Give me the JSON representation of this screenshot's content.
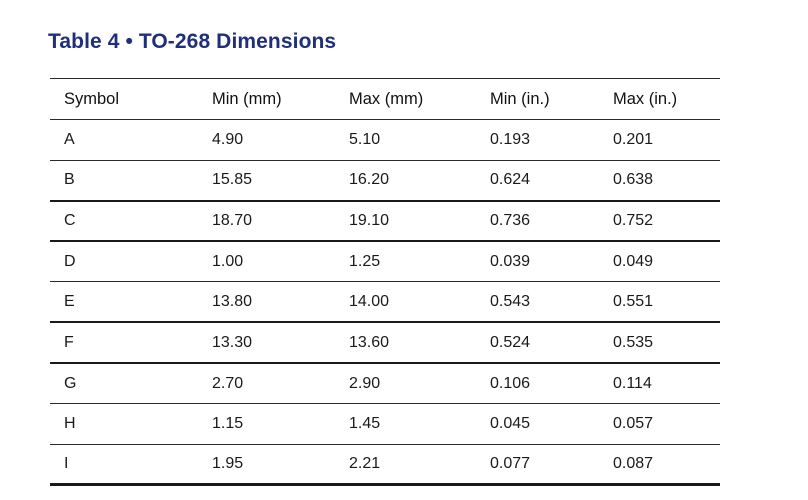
{
  "title": "Table 4 • TO-268 Dimensions",
  "columns": [
    "Symbol",
    "Min (mm)",
    "Max (mm)",
    "Min (in.)",
    "Max (in.)"
  ],
  "rows": [
    [
      "A",
      "4.90",
      "5.10",
      "0.193",
      "0.201"
    ],
    [
      "B",
      "15.85",
      "16.20",
      "0.624",
      "0.638"
    ],
    [
      "C",
      "18.70",
      "19.10",
      "0.736",
      "0.752"
    ],
    [
      "D",
      "1.00",
      "1.25",
      "0.039",
      "0.049"
    ],
    [
      "E",
      "13.80",
      "14.00",
      "0.543",
      "0.551"
    ],
    [
      "F",
      "13.30",
      "13.60",
      "0.524",
      "0.535"
    ],
    [
      "G",
      "2.70",
      "2.90",
      "0.106",
      "0.114"
    ],
    [
      "H",
      "1.15",
      "1.45",
      "0.045",
      "0.057"
    ],
    [
      "I",
      "1.95",
      "2.21",
      "0.077",
      "0.087"
    ]
  ],
  "colors": {
    "title": "#1f2f7a",
    "text": "#1a1a1a",
    "rule": "#2a2a2a"
  }
}
